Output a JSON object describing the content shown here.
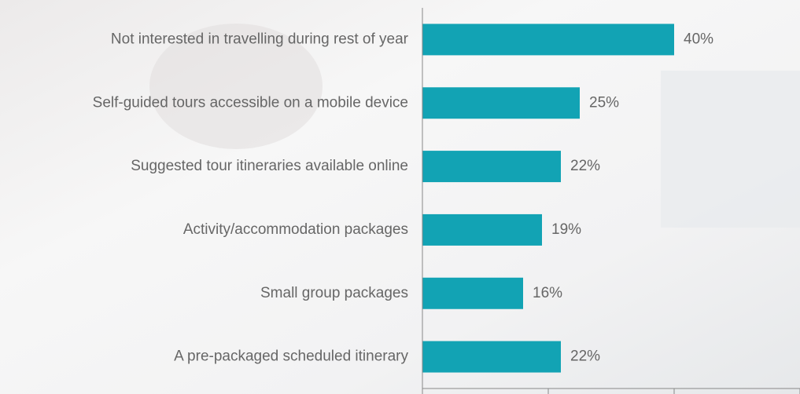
{
  "chart_data": {
    "type": "bar",
    "orientation": "horizontal",
    "categories": [
      "Not interested in travelling during rest of year",
      "Self-guided tours accessible on a mobile device",
      "Suggested tour itineraries available online",
      "Activity/accommodation packages",
      "Small group packages",
      "A pre-packaged scheduled itinerary"
    ],
    "values": [
      40,
      25,
      22,
      19,
      16,
      22
    ],
    "value_labels": [
      "40%",
      "25%",
      "22%",
      "19%",
      "16%",
      "22%"
    ],
    "color": "#12a3b4",
    "xlim": [
      0,
      60
    ],
    "xticks": [
      0,
      20,
      40,
      60
    ]
  }
}
